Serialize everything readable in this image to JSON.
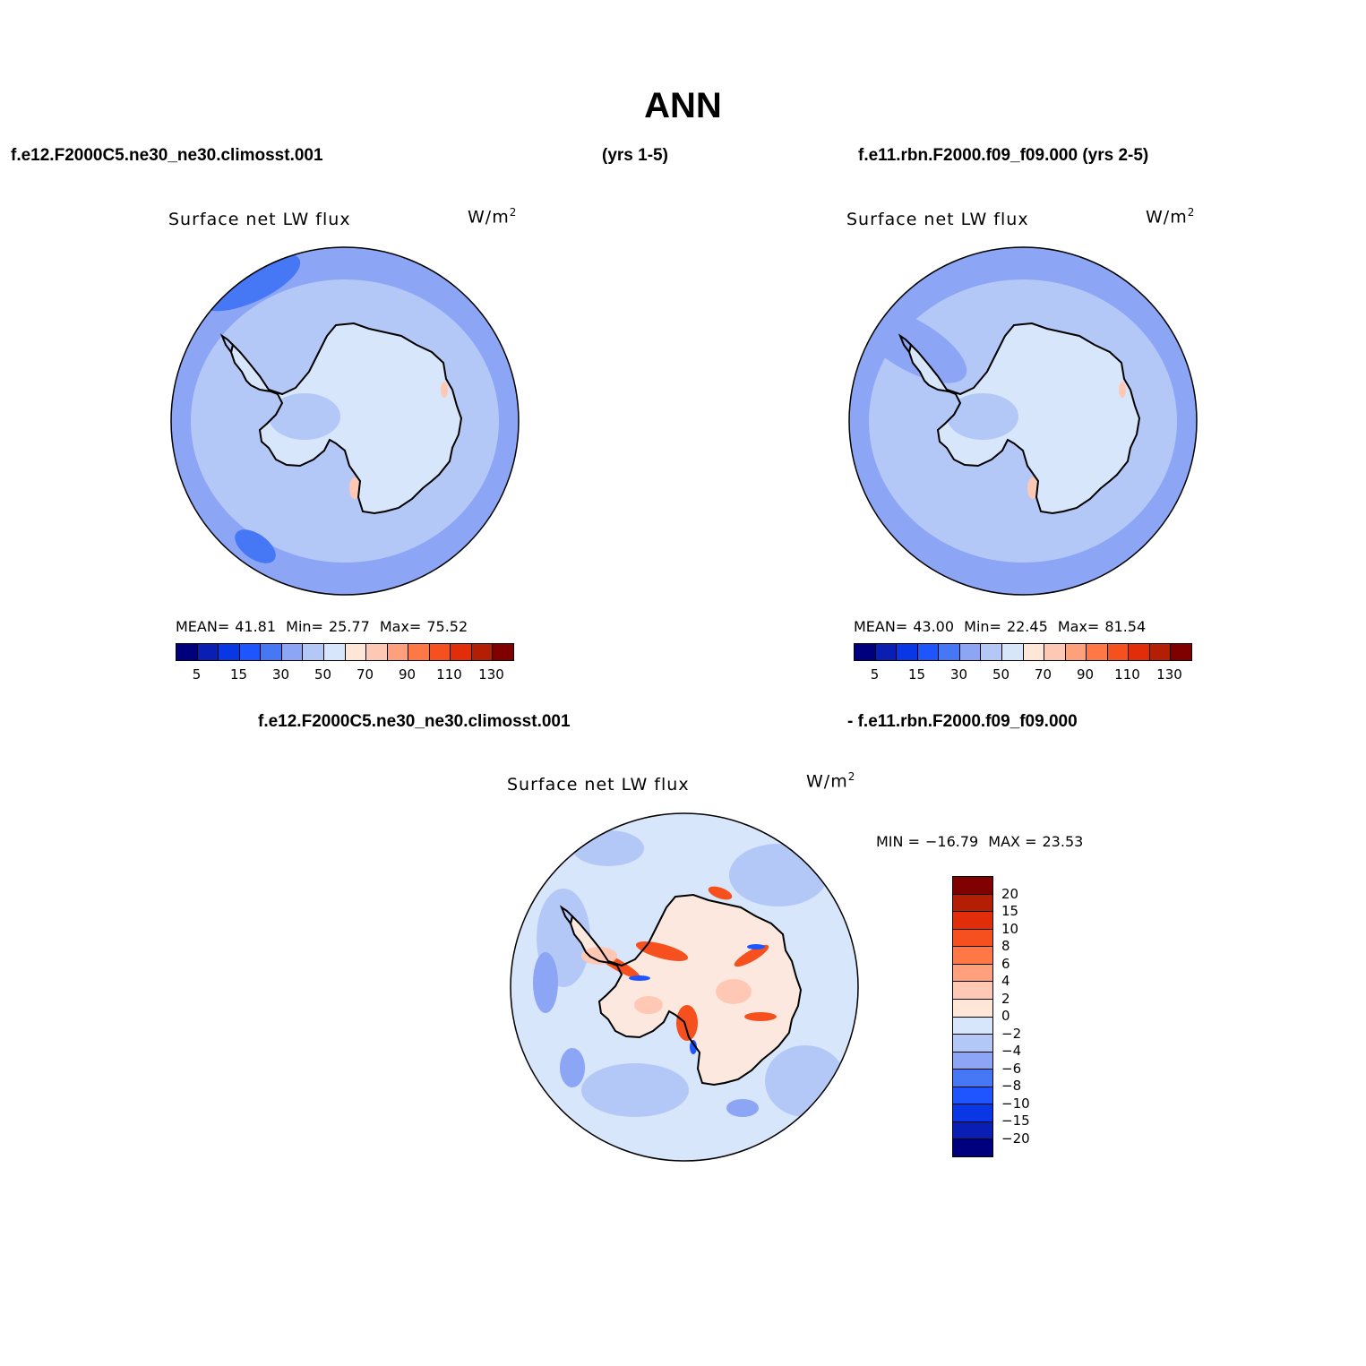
{
  "header": {
    "title": "ANN",
    "case1": "f.e12.F2000C5.ne30_ne30.climosst.001",
    "years1": "(yrs 1-5)",
    "case2": "f.e11.rbn.F2000.f09_f09.000 (yrs 2-5)",
    "diff_case1": "f.e12.F2000C5.ne30_ne30.climosst.001",
    "diff_case2": "- f.e11.rbn.F2000.f09_f09.000"
  },
  "panels": [
    {
      "title": "Surface net LW flux",
      "units_base": "W/m",
      "units_exp": "2",
      "mean_label": "MEAN=",
      "mean": "41.81",
      "min_label": "Min=",
      "min": "25.77",
      "max_label": "Max=",
      "max": "75.52"
    },
    {
      "title": "Surface net LW flux",
      "units_base": "W/m",
      "units_exp": "2",
      "mean_label": "MEAN=",
      "mean": "43.00",
      "min_label": "Min=",
      "min": "22.45",
      "max_label": "Max=",
      "max": "81.54"
    }
  ],
  "diff_panel": {
    "title": "Surface net LW flux",
    "units_base": "W/m",
    "units_exp": "2",
    "min_label": "MIN =",
    "min": "−16.79",
    "max_label": "MAX =",
    "max": "23.53"
  },
  "colorbar_abs": {
    "colors": [
      "#00007f",
      "#0a1eb4",
      "#0a37e6",
      "#1e55ff",
      "#4678f5",
      "#8ca5f5",
      "#b4c8f8",
      "#d7e6fa",
      "#ffe6d7",
      "#ffc8b4",
      "#ffa07d",
      "#ff7846",
      "#f5501e",
      "#e12d0a",
      "#b41e05",
      "#800000"
    ],
    "labels": [
      "5",
      "15",
      "30",
      "50",
      "70",
      "90",
      "110",
      "130"
    ]
  },
  "colorbar_diff": {
    "colors": [
      "#800000",
      "#b41e05",
      "#e12d0a",
      "#f5501e",
      "#ff7846",
      "#ffa07d",
      "#ffc8b4",
      "#ffe6d7",
      "#d7e6fa",
      "#b4c8f8",
      "#8ca5f5",
      "#4678f5",
      "#1e55ff",
      "#0a37e6",
      "#0a1eb4",
      "#00007f"
    ],
    "labels": [
      "20",
      "15",
      "10",
      "8",
      "6",
      "4",
      "2",
      "0",
      "−2",
      "−4",
      "−6",
      "−8",
      "−10",
      "−15",
      "−20"
    ]
  },
  "map_colors": {
    "ocean_far": "#8ca5f5",
    "ocean_mid": "#b4c8f8",
    "ice": "#d7e6fa",
    "warm": "#ffc8b4",
    "diff_bg": "#d7e6fa",
    "diff_light": "#b4c8f8",
    "diff_mid": "#8ca5f5",
    "diff_red": "#f5501e",
    "diff_pink": "#ffc8b4",
    "diff_blue": "#1e55ff"
  }
}
